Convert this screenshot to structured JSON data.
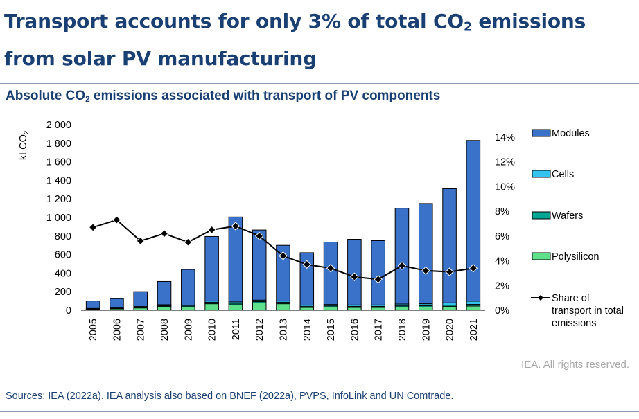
{
  "header": {
    "title_pre": "Transport accounts for only 3% of total CO",
    "title_sub": "2",
    "title_post": " emissions from solar PV manufacturing"
  },
  "chart_header": {
    "title_pre": "Absolute CO",
    "title_sub": "2",
    "title_post": " emissions associated with transport of PV components"
  },
  "chart_data": {
    "type": "bar",
    "stacked": true,
    "categories": [
      "2005",
      "2006",
      "2007",
      "2008",
      "2009",
      "2010",
      "2011",
      "2012",
      "2013",
      "2014",
      "2015",
      "2016",
      "2017",
      "2018",
      "2019",
      "2020",
      "2021"
    ],
    "series": [
      {
        "name": "Polysilicon",
        "color": "#5fe08a",
        "values": [
          10,
          15,
          25,
          40,
          35,
          70,
          60,
          80,
          70,
          30,
          35,
          30,
          30,
          35,
          35,
          40,
          45
        ]
      },
      {
        "name": "Wafers",
        "color": "#00a693",
        "values": [
          5,
          5,
          8,
          10,
          10,
          15,
          15,
          15,
          15,
          10,
          12,
          12,
          12,
          12,
          15,
          15,
          18
        ]
      },
      {
        "name": "Cells",
        "color": "#33c3ee",
        "values": [
          5,
          5,
          7,
          10,
          10,
          15,
          15,
          15,
          15,
          15,
          15,
          15,
          15,
          20,
          20,
          25,
          35
        ]
      },
      {
        "name": "Modules",
        "color": "#3a72c9",
        "values": [
          80,
          100,
          160,
          250,
          385,
          695,
          915,
          755,
          600,
          565,
          673,
          708,
          693,
          1033,
          1080,
          1230,
          1732
        ]
      }
    ],
    "line_series": {
      "name": "Share of transport in total emissions",
      "color": "#000000",
      "axis": "right",
      "values": [
        6.7,
        7.3,
        5.6,
        6.2,
        5.5,
        6.5,
        6.8,
        6.0,
        4.4,
        3.7,
        3.4,
        2.7,
        2.5,
        3.6,
        3.2,
        3.1,
        3.4
      ]
    },
    "ylabel_pre": "kt CO",
    "ylabel_sub": "2",
    "ylim": [
      0,
      2000
    ],
    "yticks": [
      "0",
      "200",
      "400",
      "600",
      "800",
      "1 000",
      "1 200",
      "1 400",
      "1 600",
      "1 800",
      "2 000"
    ],
    "y2lim": [
      0,
      15
    ],
    "y2ticks": [
      "0%",
      "2%",
      "4%",
      "6%",
      "8%",
      "10%",
      "12%",
      "14%"
    ],
    "legend_position": "right",
    "legend_labels": [
      "Modules",
      "Cells",
      "Wafers",
      "Polysilicon",
      "Share of transport in total emissions"
    ],
    "legend_line_label_lines": [
      "Share of",
      "transport in total",
      "emissions"
    ],
    "grid": false
  },
  "footer": {
    "rights": "IEA. All rights reserved.",
    "sources": "Sources: IEA (2022a). IEA analysis also based on BNEF (2022a), PVPS, InfoLink and UN Comtrade."
  }
}
